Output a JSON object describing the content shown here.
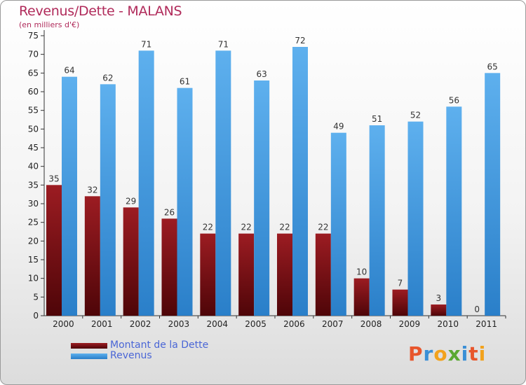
{
  "chart_data": {
    "type": "bar",
    "title": "Revenus/Dette - MALANS",
    "subtitle": "(en milliers d'€)",
    "categories": [
      "2000",
      "2001",
      "2002",
      "2003",
      "2004",
      "2005",
      "2006",
      "2007",
      "2008",
      "2009",
      "2010",
      "2011"
    ],
    "series": [
      {
        "name": "Montant de la Dette",
        "color": "#7a0e14",
        "values": [
          35,
          32,
          29,
          26,
          22,
          22,
          22,
          22,
          10,
          7,
          3,
          0
        ]
      },
      {
        "name": "Revenus",
        "color": "#3a92db",
        "values": [
          64,
          62,
          71,
          61,
          71,
          63,
          72,
          49,
          51,
          52,
          56,
          65
        ]
      }
    ],
    "ylim": [
      0,
      75
    ],
    "yticks": [
      0,
      5,
      10,
      15,
      20,
      25,
      30,
      35,
      40,
      45,
      50,
      55,
      60,
      65,
      70,
      75
    ],
    "grid": false,
    "legend_position": "bottom-left"
  },
  "logo": {
    "letters": [
      "P",
      "r",
      "o",
      "x",
      "i",
      "t",
      "i"
    ],
    "colors": [
      "#e8552b",
      "#3a8fd6",
      "#f2a21c",
      "#5aa832",
      "#3a8fd6",
      "#e8552b",
      "#f2a21c"
    ]
  }
}
